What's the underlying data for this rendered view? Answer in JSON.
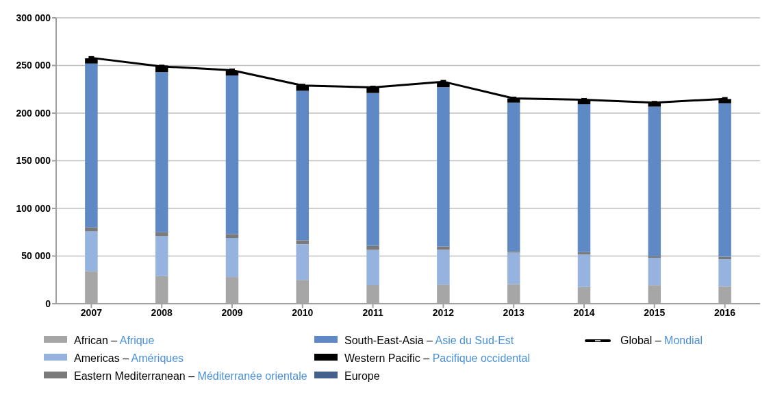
{
  "chart_data": {
    "type": "bar",
    "stacked": true,
    "categories": [
      "2007",
      "2008",
      "2009",
      "2010",
      "2011",
      "2012",
      "2013",
      "2014",
      "2015",
      "2016"
    ],
    "series": [
      {
        "name": "African – Afrique",
        "color": "#a6a6a6",
        "values": [
          34000,
          29000,
          28000,
          25000,
          19500,
          20000,
          20500,
          17600,
          19300,
          18300
        ]
      },
      {
        "name": "Americas – Amériques",
        "color": "#95b3de",
        "values": [
          42000,
          42000,
          41000,
          37500,
          37000,
          36700,
          33100,
          34100,
          28900,
          28400
        ]
      },
      {
        "name": "Eastern Mediterranean – Méditerranée orientale",
        "color": "#7a7a7a",
        "values": [
          4000,
          4000,
          4000,
          4000,
          4300,
          3400,
          1300,
          2400,
          1700,
          2500
        ]
      },
      {
        "name": "South-East-Asia – Asie du Sud-Est",
        "color": "#5f89c5",
        "values": [
          172000,
          168000,
          166500,
          157000,
          160300,
          167100,
          156100,
          155200,
          156900,
          161100
        ]
      },
      {
        "name": "Western Pacific – Pacifique occidental",
        "color": "#000000",
        "values": [
          5500,
          7000,
          5000,
          5700,
          6000,
          5000,
          4500,
          5000,
          4500,
          4500
        ]
      },
      {
        "name": "Europe",
        "color": "#44618c",
        "values": [
          0,
          0,
          0,
          0,
          0,
          0,
          0,
          0,
          0,
          0
        ]
      },
      {
        "name": "Global – Mondial",
        "type": "line",
        "color": "#000000",
        "marker": "square",
        "values": [
          258000,
          249000,
          245000,
          229000,
          227000,
          233000,
          215500,
          214000,
          211000,
          215000
        ]
      }
    ],
    "ylim": [
      0,
      300000
    ],
    "yticks": [
      {
        "value": 0,
        "label": "0"
      },
      {
        "value": 50000,
        "label": "50 000"
      },
      {
        "value": 100000,
        "label": "100 000"
      },
      {
        "value": 150000,
        "label": "150 000"
      },
      {
        "value": 200000,
        "label": "200 000"
      },
      {
        "value": 250000,
        "label": "250 000"
      },
      {
        "value": 300000,
        "label": "300 000"
      }
    ],
    "grid": "y",
    "legend": "bottom"
  }
}
